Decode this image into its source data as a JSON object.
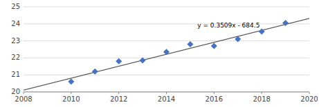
{
  "chart_data": {
    "type": "scatter",
    "series": [
      {
        "type": "line",
        "color": "#595959",
        "x": [
          2008,
          2020
        ],
        "values": [
          20.1072,
          24.318
        ]
      },
      {
        "type": "scatter",
        "color": "#4472C4",
        "marker": "diamond",
        "x": [
          2010,
          2011,
          2012,
          2013,
          2014,
          2015,
          2016,
          2017,
          2018,
          2019
        ],
        "values": [
          20.6,
          21.2,
          21.8,
          21.85,
          22.35,
          22.8,
          22.7,
          23.1,
          23.55,
          24.05
        ]
      }
    ],
    "annotations": [
      {
        "text": "y = 0.3509x - 684.5",
        "x": 2015.3,
        "y": 23.72
      }
    ],
    "xlim": [
      2008,
      2020
    ],
    "ylim": [
      20,
      25
    ],
    "xticks": [
      2008,
      2010,
      2012,
      2014,
      2016,
      2018,
      2020
    ],
    "yticks": [
      20,
      21,
      22,
      23,
      24,
      25
    ],
    "grid": "y"
  }
}
